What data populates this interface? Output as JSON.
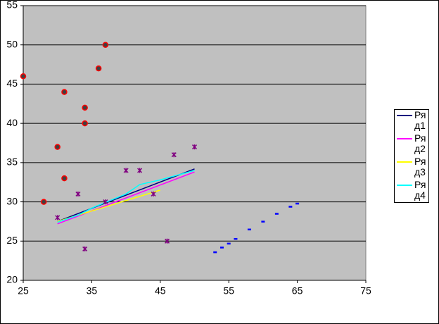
{
  "chart_data": {
    "type": "scatter",
    "xlim": [
      25,
      75
    ],
    "xticks": [
      25,
      35,
      45,
      55,
      65,
      75
    ],
    "ylim": [
      20,
      55
    ],
    "yticks": [
      20,
      25,
      30,
      35,
      40,
      45,
      50,
      55
    ],
    "grid": true,
    "legend": "right",
    "series": [
      {
        "name": "Ряд1",
        "color": "#000080",
        "x": [
          30,
          50
        ],
        "y": [
          27.5,
          34.2
        ]
      },
      {
        "name": "Ряд2",
        "color": "#ff00ff",
        "x": [
          30,
          50
        ],
        "y": [
          27.2,
          33.8
        ]
      },
      {
        "name": "Ряд3",
        "color": "#ffff00",
        "x": [
          30,
          45
        ],
        "y": [
          27.5,
          31.5
        ]
      },
      {
        "name": "Ряд4",
        "color": "#00ffff",
        "x": [
          30,
          33,
          35,
          40,
          42,
          45,
          50
        ],
        "y": [
          27.4,
          28.3,
          29.2,
          31,
          32.2,
          32.8,
          34
        ]
      },
      {
        "marker": "circle",
        "color": "#ff0000",
        "x": [
          25,
          28,
          30,
          31,
          31,
          34,
          34,
          36,
          37
        ],
        "y": [
          46,
          30,
          37,
          44,
          33,
          42,
          40,
          47,
          50
        ]
      },
      {
        "marker": "star",
        "color": "#800080",
        "x": [
          30,
          33,
          34,
          37,
          40,
          42,
          44,
          46,
          47,
          50
        ],
        "y": [
          28,
          31,
          24,
          30,
          34,
          34,
          31,
          25,
          36,
          37
        ]
      },
      {
        "marker": "dash",
        "color": "#0000ff",
        "x": [
          53,
          54,
          55,
          56,
          58,
          60,
          62,
          64,
          65
        ],
        "y": [
          23.6,
          24.2,
          24.7,
          25.3,
          26.5,
          27.5,
          28.5,
          29.4,
          29.8
        ]
      }
    ]
  }
}
